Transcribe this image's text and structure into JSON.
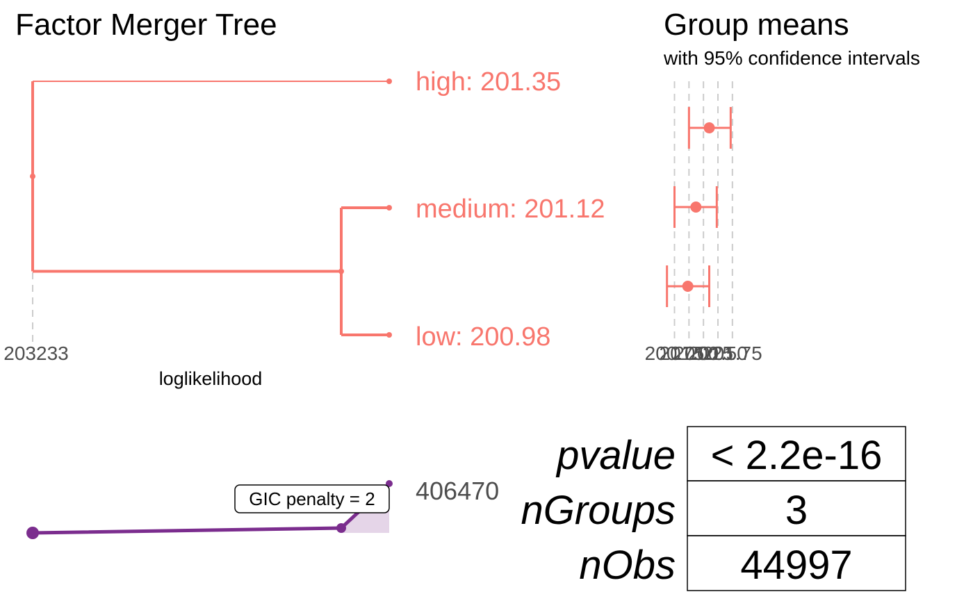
{
  "tree": {
    "title": "Factor Merger Tree",
    "xlabel": "loglikelihood",
    "x_tick": "203233",
    "color": "#F8766D",
    "leaves": [
      {
        "label": "high: 201.35"
      },
      {
        "label": "medium: 201.12"
      },
      {
        "label": "low: 200.98"
      }
    ]
  },
  "group_means": {
    "title": "Group means",
    "subtitle": "with 95% confidence intervals",
    "tick_labels": [
      "200.75",
      "201.00",
      "201.25",
      "201.50",
      "201.75"
    ]
  },
  "gic": {
    "label": "GIC penalty = 2",
    "value_label": "406470",
    "color": "#7B2D8E"
  },
  "stats": [
    {
      "key": "pvalue",
      "value": "< 2.2e-16"
    },
    {
      "key": "nGroups",
      "value": "3"
    },
    {
      "key": "nObs",
      "value": "44997"
    }
  ],
  "chart_data": [
    {
      "type": "tree",
      "title": "Factor Merger Tree",
      "xlabel": "loglikelihood",
      "x_ticks": [
        "203233"
      ],
      "leaves": [
        "high: 201.35",
        "medium: 201.12",
        "low: 200.98"
      ],
      "merges": [
        {
          "groups": [
            "medium",
            "low"
          ]
        },
        {
          "groups": [
            "high",
            "medium+low"
          ]
        }
      ]
    },
    {
      "type": "errorbar",
      "title": "Group means",
      "subtitle": "with 95% confidence intervals",
      "categories": [
        "high",
        "medium",
        "low"
      ],
      "means": [
        201.35,
        201.12,
        200.98
      ],
      "ci_lower": [
        201.0,
        200.75,
        200.62
      ],
      "ci_upper": [
        201.72,
        201.48,
        201.35
      ],
      "x_ticks": [
        200.75,
        201.0,
        201.25,
        201.5,
        201.75
      ],
      "xlim": [
        200.6,
        201.8
      ]
    },
    {
      "type": "line",
      "label": "GIC penalty = 2",
      "points": [
        {
          "step": 0
        },
        {
          "step": 1
        },
        {
          "step": 2,
          "value": 406470
        }
      ]
    }
  ]
}
